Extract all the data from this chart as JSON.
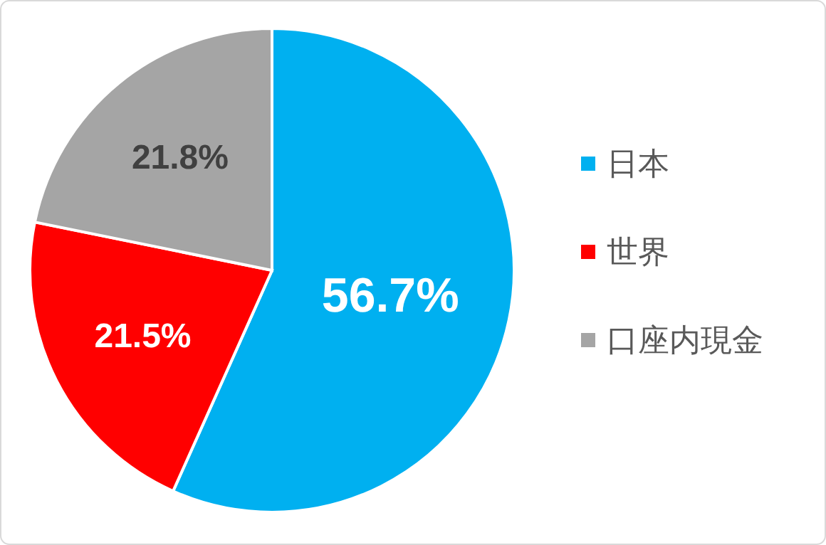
{
  "chart_data": {
    "type": "pie",
    "categories": [
      "日本",
      "世界",
      "口座内現金"
    ],
    "values": [
      56.7,
      21.5,
      21.8
    ],
    "colors": [
      "#00b0f0",
      "#ff0000",
      "#a5a5a5"
    ],
    "value_labels": [
      "56.7%",
      "21.5%",
      "21.8%"
    ],
    "legend": "right"
  }
}
